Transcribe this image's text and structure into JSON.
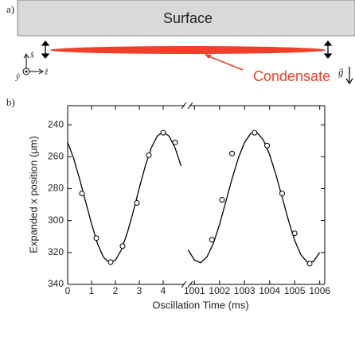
{
  "panel_a": {
    "label": "a)",
    "surface": "Surface",
    "condensate": "Condensate",
    "axes": {
      "x": "x̂",
      "y": "ŷ",
      "z": "ẑ",
      "g": "ĝ"
    }
  },
  "chart_data": {
    "type": "line",
    "panel_label": "b)",
    "xlabel": "Oscillation Time (ms)",
    "ylabel": "Expanded x position (μm)",
    "ylim": [
      228,
      340
    ],
    "y_inverted": true,
    "yticks": [
      240,
      260,
      280,
      300,
      320,
      340
    ],
    "x_segments": [
      {
        "xlim": [
          0,
          4.9
        ],
        "xticks": [
          0,
          1,
          2,
          3,
          4
        ]
      },
      {
        "xlim": [
          1000.8,
          1006.2
        ],
        "xticks": [
          1001,
          1002,
          1003,
          1004,
          1005,
          1006
        ]
      }
    ],
    "series": [
      {
        "type": "line",
        "color": "#000000",
        "x": [
          0,
          0.25,
          0.5,
          0.75,
          1.0,
          1.25,
          1.5,
          1.75,
          2.0,
          2.25,
          2.5,
          2.75,
          3.0,
          3.25,
          3.5,
          3.75,
          4.0,
          4.25,
          4.5,
          4.75
        ],
        "values": [
          251,
          261,
          274,
          288,
          302,
          314.5,
          323,
          326.4,
          324.8,
          318.3,
          307.6,
          294.2,
          279.6,
          265.9,
          254.5,
          247.1,
          244.5,
          247.1,
          254.5,
          265.9
        ]
      },
      {
        "type": "line",
        "color": "#000000",
        "x": [
          1000.75,
          1001.0,
          1001.25,
          1001.5,
          1001.75,
          1002.0,
          1002.25,
          1002.5,
          1002.75,
          1003.0,
          1003.25,
          1003.5,
          1003.75,
          1004.0,
          1004.25,
          1004.5,
          1004.75,
          1005.0,
          1005.25,
          1005.5,
          1005.75,
          1006.0
        ],
        "values": [
          318.4,
          324.8,
          326.4,
          322.8,
          314.5,
          302.5,
          288.4,
          273.9,
          260.9,
          251.0,
          245.4,
          244.9,
          249.5,
          258.6,
          271.2,
          285.5,
          299.9,
          312.4,
          321.5,
          326.1,
          325.6,
          320.0
        ]
      },
      {
        "type": "scatter",
        "color": "#000000",
        "x": [
          0.6,
          1.2,
          1.8,
          2.3,
          2.9,
          3.4,
          4.0,
          4.5,
          1001.7,
          1002.1,
          1002.5,
          1003.4,
          1003.9,
          1004.5,
          1005.0,
          1005.6
        ],
        "values": [
          283,
          311,
          326,
          316,
          289,
          259,
          245,
          251,
          312,
          287,
          258,
          245,
          253,
          283,
          308,
          327
        ]
      }
    ]
  }
}
